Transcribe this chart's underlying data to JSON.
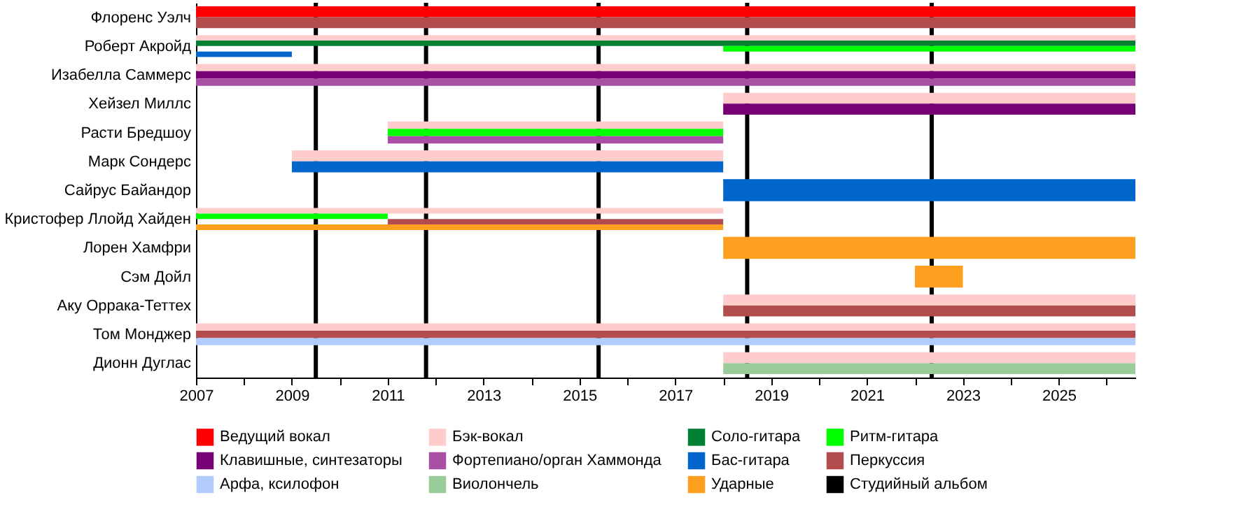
{
  "chart_data": {
    "type": "bar",
    "orientation": "horizontal",
    "legend": "bottom",
    "grid": false,
    "categories": [
      "Флоренс Уэлч",
      "Роберт Акройд",
      "Изабелла Саммерс",
      "Хейзел Миллс",
      "Расти Бредшоу",
      "Марк Сондерс",
      "Сайрус Байандор",
      "Кристофер Ллойд Хайден",
      "Лорен Хамфри",
      "Сэм Дойл",
      "Аку Оррака-Теттех",
      "Том Монджер",
      "Дионн Дуглас"
    ],
    "xlim": [
      2007,
      2026.6
    ],
    "xticks": [
      2007,
      {
        "value": 2008,
        "label": null
      },
      2009,
      {
        "value": 2010,
        "label": null
      },
      2011,
      {
        "value": 2012,
        "label": null
      },
      2013,
      {
        "value": 2014,
        "label": null
      },
      2015,
      {
        "value": 2016,
        "label": null
      },
      2017,
      {
        "value": 2018,
        "label": null
      },
      2019,
      {
        "value": 2020,
        "label": null
      },
      2021,
      {
        "value": 2022,
        "label": null
      },
      2023,
      {
        "value": 2024,
        "label": null
      },
      2025,
      {
        "value": 2026,
        "label": null
      }
    ],
    "series": [
      {
        "name": "Ведущий вокал",
        "color": "#ff0000",
        "base": [
          2007,
          null,
          null,
          null,
          null,
          null,
          null,
          null,
          null,
          null,
          null,
          null,
          null
        ],
        "values": [
          19.6,
          null,
          null,
          null,
          null,
          null,
          null,
          null,
          null,
          null,
          null,
          null,
          null
        ]
      },
      {
        "name": "Бэк-вокал",
        "color": "#ffcccc",
        "base": [
          null,
          2007,
          2007,
          2018,
          2011,
          2009,
          null,
          2007,
          null,
          null,
          2018,
          2007,
          2018
        ],
        "values": [
          null,
          19.6,
          19.6,
          8.6,
          7,
          9,
          null,
          11,
          null,
          null,
          8.6,
          19.6,
          8.6
        ]
      },
      {
        "name": "Соло-гитара",
        "color": "#008033",
        "base": [
          null,
          2007,
          null,
          null,
          null,
          null,
          null,
          null,
          null,
          null,
          null,
          null,
          null
        ],
        "values": [
          null,
          19.6,
          null,
          null,
          null,
          null,
          null,
          null,
          null,
          null,
          null,
          null,
          null
        ]
      },
      {
        "name": "Ритм-гитара",
        "color": "#00ff00",
        "base": [
          null,
          2018,
          null,
          null,
          2011,
          null,
          null,
          2007,
          null,
          null,
          null,
          null,
          null
        ],
        "values": [
          null,
          8.6,
          null,
          null,
          7,
          null,
          null,
          4,
          null,
          null,
          null,
          null,
          null
        ]
      },
      {
        "name": "Клавишные, синтезаторы",
        "color": "#770077",
        "base": [
          null,
          null,
          2007,
          2018,
          null,
          null,
          null,
          null,
          null,
          null,
          null,
          null,
          null
        ],
        "values": [
          null,
          null,
          19.6,
          8.6,
          null,
          null,
          null,
          null,
          null,
          null,
          null,
          null,
          null
        ]
      },
      {
        "name": "Фортепиано/орган Хаммонда",
        "color": "#aa4fa6",
        "base": [
          null,
          null,
          2007,
          null,
          2011,
          null,
          null,
          null,
          null,
          null,
          null,
          null,
          null
        ],
        "values": [
          null,
          null,
          19.6,
          null,
          7,
          null,
          null,
          null,
          null,
          null,
          null,
          null,
          null
        ]
      },
      {
        "name": "Бас-гитара",
        "color": "#0066cc",
        "base": [
          null,
          2007,
          null,
          null,
          null,
          2009,
          2018,
          null,
          null,
          null,
          null,
          null,
          null
        ],
        "values": [
          null,
          2,
          null,
          null,
          null,
          9,
          8.6,
          null,
          null,
          null,
          null,
          null,
          null
        ]
      },
      {
        "name": "Перкуссия",
        "color": "#b34d4d",
        "base": [
          2007,
          null,
          null,
          null,
          null,
          null,
          null,
          2011,
          null,
          null,
          2018,
          2007,
          null
        ],
        "values": [
          19.6,
          null,
          null,
          null,
          null,
          null,
          null,
          7,
          null,
          null,
          8.6,
          19.6,
          null
        ]
      },
      {
        "name": "Арфа, ксилофон",
        "color": "#b3ccff",
        "base": [
          null,
          null,
          null,
          null,
          null,
          null,
          null,
          null,
          null,
          null,
          null,
          2007,
          null
        ],
        "values": [
          null,
          null,
          null,
          null,
          null,
          null,
          null,
          null,
          null,
          null,
          null,
          19.6,
          null
        ]
      },
      {
        "name": "Виолончель",
        "color": "#99cc99",
        "base": [
          null,
          null,
          null,
          null,
          null,
          null,
          null,
          null,
          null,
          null,
          null,
          null,
          2018
        ],
        "values": [
          null,
          null,
          null,
          null,
          null,
          null,
          null,
          null,
          null,
          null,
          null,
          null,
          8.6
        ]
      },
      {
        "name": "Ударные",
        "color": "#ff9f20",
        "base": [
          null,
          null,
          null,
          null,
          null,
          null,
          null,
          2007,
          2018,
          2022,
          null,
          null,
          null
        ],
        "values": [
          null,
          null,
          null,
          null,
          null,
          null,
          null,
          11,
          8.6,
          1,
          null,
          null,
          null
        ]
      }
    ],
    "ref_lines": [
      {
        "axis": "x",
        "value": 2009.5,
        "label": "Студийный альбом",
        "color": "#000000"
      },
      {
        "axis": "x",
        "value": 2011.8,
        "color": "#000000"
      },
      {
        "axis": "x",
        "value": 2015.4,
        "color": "#000000"
      },
      {
        "axis": "x",
        "value": 2018.5,
        "color": "#000000"
      },
      {
        "axis": "x",
        "value": 2022.35,
        "color": "#000000"
      }
    ]
  }
}
